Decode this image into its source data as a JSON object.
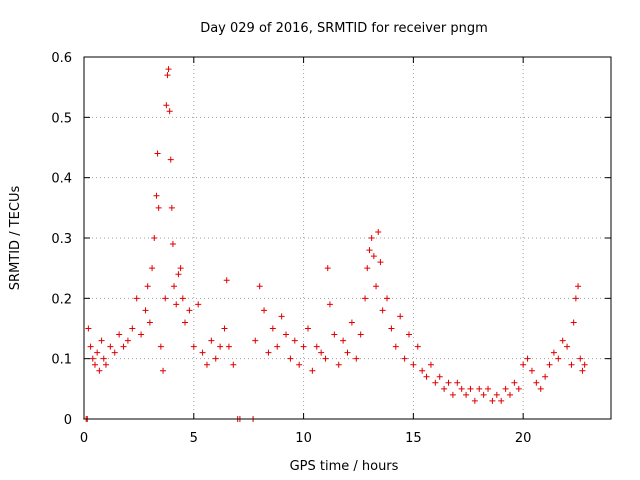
{
  "chart_data": {
    "type": "scatter",
    "title": "Day 029 of 2016, SRMTID for receiver pngm",
    "xlabel": "GPS time / hours",
    "ylabel": "SRMTID / TECUs",
    "xlim": [
      0,
      24
    ],
    "ylim": [
      0,
      0.6
    ],
    "x_ticks": [
      0,
      5,
      10,
      15,
      20
    ],
    "x_tick_labels": [
      "0",
      "5",
      "10",
      "15",
      "20"
    ],
    "y_ticks": [
      0,
      0.1,
      0.2,
      0.3,
      0.4,
      0.5,
      0.6
    ],
    "y_tick_labels": [
      "0",
      "0.1",
      "0.2",
      "0.3",
      "0.4",
      "0.5",
      "0.6"
    ],
    "grid": true,
    "marker": "plus",
    "color": "#e00000",
    "series": [
      {
        "name": "SRMTID",
        "x": [
          0.1,
          0.15,
          0.2,
          0.3,
          0.4,
          0.5,
          0.6,
          0.7,
          0.8,
          0.9,
          1.0,
          1.2,
          1.4,
          1.6,
          1.8,
          2.0,
          2.2,
          2.4,
          2.6,
          2.8,
          2.9,
          3.0,
          3.1,
          3.2,
          3.3,
          3.35,
          3.4,
          3.5,
          3.6,
          3.7,
          3.75,
          3.8,
          3.85,
          3.9,
          3.95,
          4.0,
          4.05,
          4.1,
          4.2,
          4.3,
          4.4,
          4.5,
          4.6,
          4.8,
          5.0,
          5.2,
          5.4,
          5.6,
          5.8,
          6.0,
          6.2,
          6.4,
          6.5,
          6.6,
          6.8,
          7.0,
          7.1,
          7.7,
          7.8,
          8.0,
          8.2,
          8.4,
          8.6,
          8.8,
          9.0,
          9.2,
          9.4,
          9.6,
          9.8,
          10.0,
          10.2,
          10.4,
          10.6,
          10.8,
          11.0,
          11.1,
          11.2,
          11.4,
          11.6,
          11.8,
          12.0,
          12.2,
          12.4,
          12.6,
          12.8,
          12.9,
          13.0,
          13.1,
          13.2,
          13.3,
          13.4,
          13.5,
          13.6,
          13.8,
          14.0,
          14.2,
          14.4,
          14.6,
          14.8,
          15.0,
          15.2,
          15.4,
          15.6,
          15.8,
          16.0,
          16.2,
          16.4,
          16.6,
          16.8,
          17.0,
          17.2,
          17.4,
          17.6,
          17.8,
          18.0,
          18.2,
          18.4,
          18.6,
          18.8,
          19.0,
          19.2,
          19.4,
          19.6,
          19.8,
          20.0,
          20.2,
          20.4,
          20.6,
          20.8,
          21.0,
          21.2,
          21.4,
          21.6,
          21.8,
          22.0,
          22.2,
          22.3,
          22.4,
          22.5,
          22.6,
          22.7,
          22.8
        ],
        "y": [
          0.0,
          0.0,
          0.15,
          0.12,
          0.1,
          0.09,
          0.11,
          0.08,
          0.13,
          0.1,
          0.09,
          0.12,
          0.11,
          0.14,
          0.12,
          0.13,
          0.15,
          0.2,
          0.14,
          0.18,
          0.22,
          0.16,
          0.25,
          0.3,
          0.37,
          0.44,
          0.35,
          0.12,
          0.08,
          0.2,
          0.52,
          0.57,
          0.58,
          0.51,
          0.43,
          0.35,
          0.29,
          0.22,
          0.19,
          0.24,
          0.25,
          0.2,
          0.16,
          0.18,
          0.12,
          0.19,
          0.11,
          0.09,
          0.13,
          0.1,
          0.12,
          0.15,
          0.23,
          0.12,
          0.09,
          0.0,
          0.0,
          0.0,
          0.13,
          0.22,
          0.18,
          0.11,
          0.15,
          0.12,
          0.17,
          0.14,
          0.1,
          0.13,
          0.09,
          0.12,
          0.15,
          0.08,
          0.12,
          0.11,
          0.1,
          0.25,
          0.19,
          0.14,
          0.09,
          0.13,
          0.11,
          0.16,
          0.1,
          0.14,
          0.2,
          0.25,
          0.28,
          0.3,
          0.27,
          0.22,
          0.31,
          0.26,
          0.18,
          0.2,
          0.15,
          0.12,
          0.17,
          0.1,
          0.14,
          0.09,
          0.12,
          0.08,
          0.07,
          0.09,
          0.06,
          0.07,
          0.05,
          0.06,
          0.04,
          0.06,
          0.05,
          0.04,
          0.05,
          0.03,
          0.05,
          0.04,
          0.05,
          0.03,
          0.04,
          0.03,
          0.05,
          0.04,
          0.06,
          0.05,
          0.09,
          0.1,
          0.08,
          0.06,
          0.05,
          0.07,
          0.09,
          0.11,
          0.1,
          0.13,
          0.12,
          0.09,
          0.16,
          0.2,
          0.22,
          0.1,
          0.08,
          0.09
        ]
      }
    ]
  }
}
